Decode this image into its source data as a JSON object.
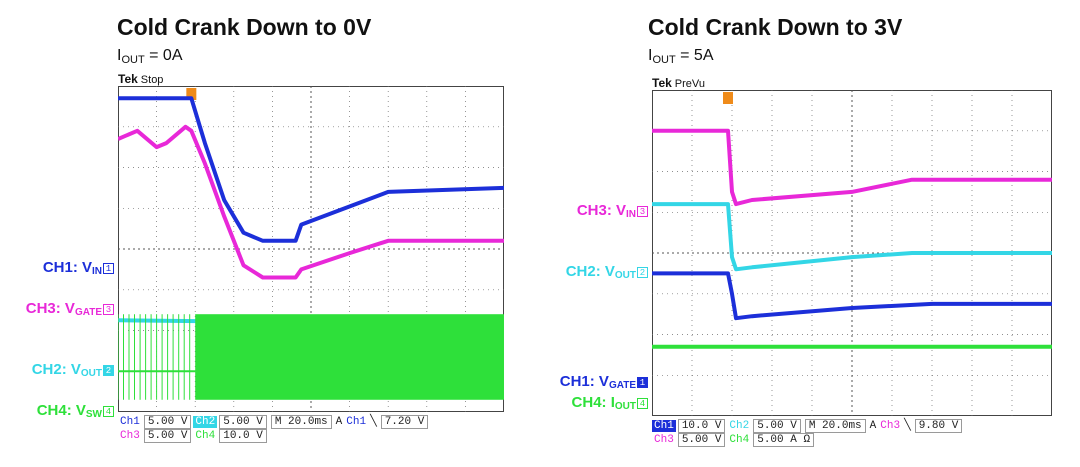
{
  "colors": {
    "ch1": "#1c2fd9",
    "ch2": "#33d6e6",
    "ch3": "#e828d8",
    "ch4": "#2ee03a",
    "grid": "#6b6b6b",
    "trigger": "#ef8b1a"
  },
  "chart_data": [
    {
      "type": "line",
      "title": "Cold Crank Down to 0V",
      "condition": {
        "sym": "I",
        "sub": "OUT",
        "rest": " = 0A"
      },
      "scope": {
        "brand": "Tek",
        "state": "Stop"
      },
      "xlabel": "",
      "ylabel": "",
      "grid": true,
      "x_range": [
        -100,
        100
      ],
      "y_range": [
        -4,
        4
      ],
      "time_unit": "ms",
      "series": [
        {
          "name": "CH1: V_IN",
          "color": "#1c2fd9",
          "label": {
            "main": "CH1: V",
            "sub": "IN"
          },
          "ref": -0.5,
          "marker_style": "outline",
          "marker": "1",
          "points": [
            [
              -100,
              3.7
            ],
            [
              -62,
              3.7
            ],
            [
              -55,
              2.6
            ],
            [
              -45,
              1.2
            ],
            [
              -35,
              0.4
            ],
            [
              -25,
              0.2
            ],
            [
              -8,
              0.2
            ],
            [
              -5,
              0.6
            ],
            [
              40,
              1.4
            ],
            [
              100,
              1.5
            ]
          ]
        },
        {
          "name": "CH3: V_GATE",
          "color": "#e828d8",
          "label": {
            "main": "CH3: V",
            "sub": "GATE"
          },
          "ref": -1.5,
          "marker_style": "outline",
          "marker": "3",
          "points": [
            [
              -100,
              2.7
            ],
            [
              -90,
              2.9
            ],
            [
              -80,
              2.5
            ],
            [
              -75,
              2.6
            ],
            [
              -65,
              3.0
            ],
            [
              -62,
              2.9
            ],
            [
              -55,
              2.1
            ],
            [
              -45,
              0.8
            ],
            [
              -35,
              -0.4
            ],
            [
              -25,
              -0.7
            ],
            [
              -8,
              -0.7
            ],
            [
              -5,
              -0.5
            ],
            [
              20,
              -0.1
            ],
            [
              40,
              0.2
            ],
            [
              100,
              0.2
            ]
          ]
        },
        {
          "name": "CH2: V_OUT",
          "color": "#33d6e6",
          "label": {
            "main": "CH2: V",
            "sub": "OUT"
          },
          "ref": -3.0,
          "marker_style": "filled",
          "marker": "2",
          "points": [
            [
              -100,
              -1.75
            ],
            [
              100,
              -1.85
            ]
          ]
        },
        {
          "name": "CH4: V_SW",
          "color": "#2ee03a",
          "label": {
            "main": "CH4: V",
            "sub": "SW"
          },
          "ref": -4.0,
          "marker_style": "outline",
          "marker": "4",
          "points": [
            [
              -100,
              -3.0
            ],
            [
              -60,
              -3.0
            ],
            [
              -60,
              -3.0
            ],
            [
              100,
              -3.0
            ]
          ]
        }
      ],
      "status_rows": [
        [
          {
            "t": "Ch1",
            "c": "ch1"
          },
          {
            "t": "5.00 V",
            "box": true
          },
          {
            "t": "Ch2",
            "c": "ch2",
            "inv": true
          },
          {
            "t": "5.00 V",
            "box": true
          },
          {
            "t": "M 20.0ms",
            "box": true
          },
          {
            "t": "A"
          },
          {
            "t": "Ch1",
            "c": "ch1"
          },
          {
            "t": "╲"
          },
          {
            "t": "7.20 V",
            "box": true
          }
        ],
        [
          {
            "t": "Ch3",
            "c": "ch3"
          },
          {
            "t": "5.00 V",
            "box": true
          },
          {
            "t": "Ch4",
            "c": "ch4"
          },
          {
            "t": "10.0 V",
            "box": true
          }
        ]
      ]
    },
    {
      "type": "line",
      "title": "Cold Crank Down to 3V",
      "condition": {
        "sym": "I",
        "sub": "OUT",
        "rest": " = 5A"
      },
      "scope": {
        "brand": "Tek",
        "state": "PreVu"
      },
      "xlabel": "",
      "ylabel": "",
      "grid": true,
      "x_range": [
        -100,
        100
      ],
      "y_range": [
        -4,
        4
      ],
      "time_unit": "ms",
      "series": [
        {
          "name": "CH3: V_IN",
          "color": "#e828d8",
          "label": {
            "main": "CH3: V",
            "sub": "IN"
          },
          "ref": 1.0,
          "marker_style": "outline",
          "marker": "3",
          "points": [
            [
              -100,
              3.0
            ],
            [
              -62,
              3.0
            ],
            [
              -60,
              1.5
            ],
            [
              -58,
              1.2
            ],
            [
              -50,
              1.3
            ],
            [
              0,
              1.5
            ],
            [
              30,
              1.8
            ],
            [
              100,
              1.8
            ]
          ]
        },
        {
          "name": "CH2: V_OUT",
          "color": "#33d6e6",
          "label": {
            "main": "CH2: V",
            "sub": "OUT"
          },
          "ref": -0.5,
          "marker_style": "outline",
          "marker": "2",
          "points": [
            [
              -100,
              1.2
            ],
            [
              -62,
              1.2
            ],
            [
              -60,
              -0.1
            ],
            [
              -58,
              -0.4
            ],
            [
              -50,
              -0.35
            ],
            [
              0,
              -0.1
            ],
            [
              30,
              0.0
            ],
            [
              100,
              0.0
            ]
          ]
        },
        {
          "name": "CH1: V_GATE",
          "color": "#1c2fd9",
          "label": {
            "main": "CH1: V",
            "sub": "GATE"
          },
          "ref": -3.2,
          "marker_style": "filled",
          "marker": "1",
          "points": [
            [
              -100,
              -0.5
            ],
            [
              -62,
              -0.5
            ],
            [
              -60,
              -1.0
            ],
            [
              -58,
              -1.6
            ],
            [
              -50,
              -1.55
            ],
            [
              0,
              -1.35
            ],
            [
              40,
              -1.25
            ],
            [
              100,
              -1.25
            ]
          ]
        },
        {
          "name": "CH4: I_OUT",
          "color": "#2ee03a",
          "label": {
            "main": "CH4: I",
            "sub": "OUT"
          },
          "ref": -3.7,
          "marker_style": "outline",
          "marker": "4",
          "points": [
            [
              -100,
              -2.3
            ],
            [
              100,
              -2.3
            ]
          ]
        }
      ],
      "status_rows": [
        [
          {
            "t": "Ch1",
            "c": "ch1",
            "inv": true
          },
          {
            "t": "10.0 V",
            "box": true
          },
          {
            "t": "Ch2",
            "c": "ch2"
          },
          {
            "t": "5.00 V",
            "box": true
          },
          {
            "t": "M 20.0ms",
            "box": true
          },
          {
            "t": "A"
          },
          {
            "t": "Ch3",
            "c": "ch3"
          },
          {
            "t": "╲"
          },
          {
            "t": "9.80 V",
            "box": true
          }
        ],
        [
          {
            "t": "Ch3",
            "c": "ch3"
          },
          {
            "t": "5.00 V",
            "box": true
          },
          {
            "t": "Ch4",
            "c": "ch4"
          },
          {
            "t": "5.00 A Ω",
            "box": true
          }
        ]
      ]
    }
  ]
}
